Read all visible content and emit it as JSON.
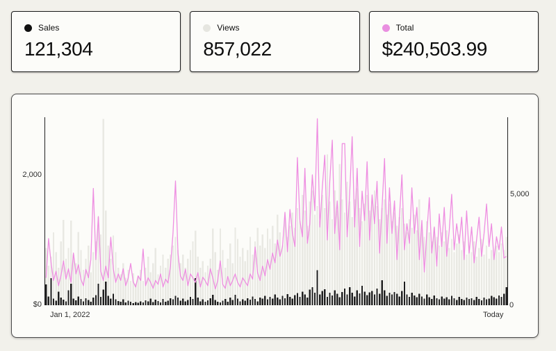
{
  "stats": [
    {
      "label": "Sales",
      "value": "121,304",
      "color": "#111111"
    },
    {
      "label": "Views",
      "value": "857,022",
      "color": "#e6e6e0"
    },
    {
      "label": "Total",
      "value": "$240,503.99",
      "color": "#e98fe0"
    }
  ],
  "chart_data": {
    "type": "combo-bar-line",
    "x_axis": {
      "start_label": "Jan 1, 2022",
      "end_label": "Today",
      "grid": false
    },
    "left_axis": {
      "ticks": [
        {
          "label": "$0",
          "value": 0
        },
        {
          "label": "$2,000",
          "value": 2000
        }
      ],
      "plot_top_value": 2883,
      "applies_to": "total"
    },
    "right_axis": {
      "ticks": [
        {
          "label": "0",
          "value": 0
        },
        {
          "label": "5,000",
          "value": 5000
        }
      ],
      "plot_top_value": 8522,
      "applies_to": "views, sales"
    },
    "axis_line_color": "#1f1f1f",
    "series": [
      {
        "name": "views",
        "type": "bar",
        "axis": "right",
        "color": "#e9e9e3",
        "values": [
          2600,
          1800,
          2200,
          3300,
          2400,
          1700,
          2900,
          3875,
          2100,
          2600,
          3840,
          2300,
          1900,
          3310,
          2500,
          1600,
          2100,
          2700,
          1500,
          2400,
          2900,
          4000,
          3200,
          8450,
          4300,
          2700,
          2100,
          3160,
          2400,
          1700,
          1400,
          1900,
          1250,
          1600,
          1100,
          1450,
          970,
          1300,
          1600,
          1100,
          1700,
          2200,
          1500,
          1900,
          2600,
          1400,
          1800,
          2300,
          1700,
          2100,
          2300,
          2700,
          3100,
          2500,
          1900,
          2300,
          1700,
          2100,
          2500,
          2900,
          3375,
          2200,
          1700,
          2000,
          1500,
          1800,
          2100,
          3470,
          2400,
          1600,
          3470,
          2500,
          1700,
          2100,
          2800,
          1900,
          3530,
          3000,
          2200,
          2600,
          2000,
          2500,
          3100,
          2300,
          2900,
          3500,
          2700,
          3200,
          2600,
          3470,
          3000,
          3600,
          2800,
          4100,
          3300,
          2700,
          3900,
          3100,
          3600,
          4200,
          3500,
          4400,
          3800,
          5000,
          4300,
          3600,
          4700,
          5200,
          4100,
          4500,
          3800,
          5000,
          4400,
          6840,
          4700,
          3900,
          5200,
          4300,
          6400,
          4800,
          4200,
          5600,
          4700,
          4000,
          4800,
          5300,
          4400,
          3800,
          4600,
          5000,
          4300,
          4700,
          5200,
          4500,
          3900,
          4400,
          4800,
          4100,
          4600,
          3800,
          4200,
          3600,
          4000,
          4400,
          3700,
          3300,
          3900,
          3500,
          4100,
          3400,
          4800,
          3600,
          3100,
          3800,
          3300,
          2900,
          3500,
          3100,
          2700,
          3300,
          2900,
          3400,
          2600,
          3000,
          2400,
          2800,
          3200,
          2500,
          2900,
          2300,
          2700,
          2400,
          2900,
          2200,
          2600,
          3000,
          2300,
          2700,
          2100,
          2500,
          2300,
          2700,
          2400,
          2800,
          2500,
          3100
        ]
      },
      {
        "name": "sales",
        "type": "bar",
        "axis": "right",
        "color": "#1e1e1e",
        "values": [
          950,
          400,
          1220,
          300,
          200,
          620,
          350,
          250,
          180,
          680,
          970,
          300,
          220,
          400,
          280,
          180,
          320,
          240,
          160,
          350,
          450,
          970,
          380,
          700,
          1065,
          420,
          300,
          520,
          260,
          190,
          150,
          260,
          120,
          200,
          160,
          90,
          140,
          110,
          180,
          130,
          220,
          170,
          300,
          140,
          250,
          190,
          120,
          280,
          160,
          210,
          320,
          260,
          420,
          350,
          200,
          300,
          180,
          240,
          380,
          280,
          1220,
          350,
          180,
          260,
          150,
          220,
          310,
          470,
          240,
          160,
          130,
          200,
          280,
          160,
          350,
          240,
          470,
          300,
          180,
          260,
          200,
          320,
          250,
          400,
          280,
          180,
          350,
          300,
          420,
          260,
          380,
          300,
          480,
          350,
          260,
          420,
          320,
          500,
          380,
          300,
          450,
          550,
          380,
          620,
          480,
          350,
          700,
          820,
          560,
          1590,
          480,
          640,
          720,
          380,
          560,
          440,
          680,
          520,
          360,
          600,
          760,
          480,
          820,
          560,
          400,
          680,
          540,
          880,
          620,
          460,
          580,
          640,
          480,
          760,
          520,
          1125,
          680,
          420,
          560,
          480,
          600,
          520,
          400,
          640,
          1065,
          480,
          380,
          560,
          440,
          360,
          520,
          400,
          300,
          480,
          360,
          280,
          440,
          320,
          260,
          400,
          300,
          360,
          260,
          420,
          310,
          230,
          380,
          280,
          240,
          350,
          280,
          320,
          240,
          380,
          290,
          220,
          340,
          260,
          300,
          420,
          360,
          300,
          440,
          380,
          520,
          810
        ]
      },
      {
        "name": "total",
        "type": "line",
        "axis": "left",
        "color": "#ee8ee1",
        "values": [
          420,
          1022,
          650,
          380,
          520,
          300,
          460,
          680,
          400,
          560,
          350,
          800,
          480,
          620,
          400,
          300,
          550,
          420,
          700,
          1790,
          700,
          1360,
          520,
          380,
          600,
          420,
          1043,
          560,
          350,
          480,
          380,
          560,
          300,
          420,
          640,
          360,
          280,
          450,
          380,
          862,
          300,
          420,
          350,
          260,
          380,
          320,
          480,
          280,
          400,
          340,
          600,
          1100,
          1905,
          800,
          450,
          380,
          550,
          300,
          480,
          420,
          350,
          500,
          280,
          430,
          370,
          300,
          560,
          420,
          250,
          380,
          680,
          320,
          260,
          440,
          300,
          380,
          480,
          350,
          280,
          420,
          360,
          300,
          480,
          400,
          894,
          500,
          380,
          600,
          450,
          700,
          550,
          800,
          650,
          1000,
          750,
          900,
          1426,
          820,
          1468,
          1100,
          900,
          2265,
          1300,
          1050,
          2100,
          950,
          1250,
          2000,
          1450,
          2860,
          1200,
          1800,
          2300,
          1000,
          1900,
          2532,
          1100,
          1600,
          850,
          2479,
          2480,
          1050,
          1700,
          2585,
          1200,
          2100,
          900,
          1750,
          1300,
          2200,
          1000,
          1692,
          1250,
          1900,
          800,
          1500,
          2250,
          950,
          1800,
          1100,
          1600,
          700,
          1350,
          2000,
          850,
          1250,
          950,
          1800,
          1100,
          1500,
          700,
          1300,
          510,
          1100,
          1650,
          800,
          1200,
          600,
          1400,
          900,
          1500,
          750,
          1150,
          1700,
          850,
          1250,
          950,
          1350,
          700,
          1447,
          800,
          1200,
          650,
          1000,
          1350,
          750,
          1100,
          1553,
          900,
          1250,
          700,
          1050,
          850,
          1200,
          723,
          750
        ]
      }
    ]
  }
}
